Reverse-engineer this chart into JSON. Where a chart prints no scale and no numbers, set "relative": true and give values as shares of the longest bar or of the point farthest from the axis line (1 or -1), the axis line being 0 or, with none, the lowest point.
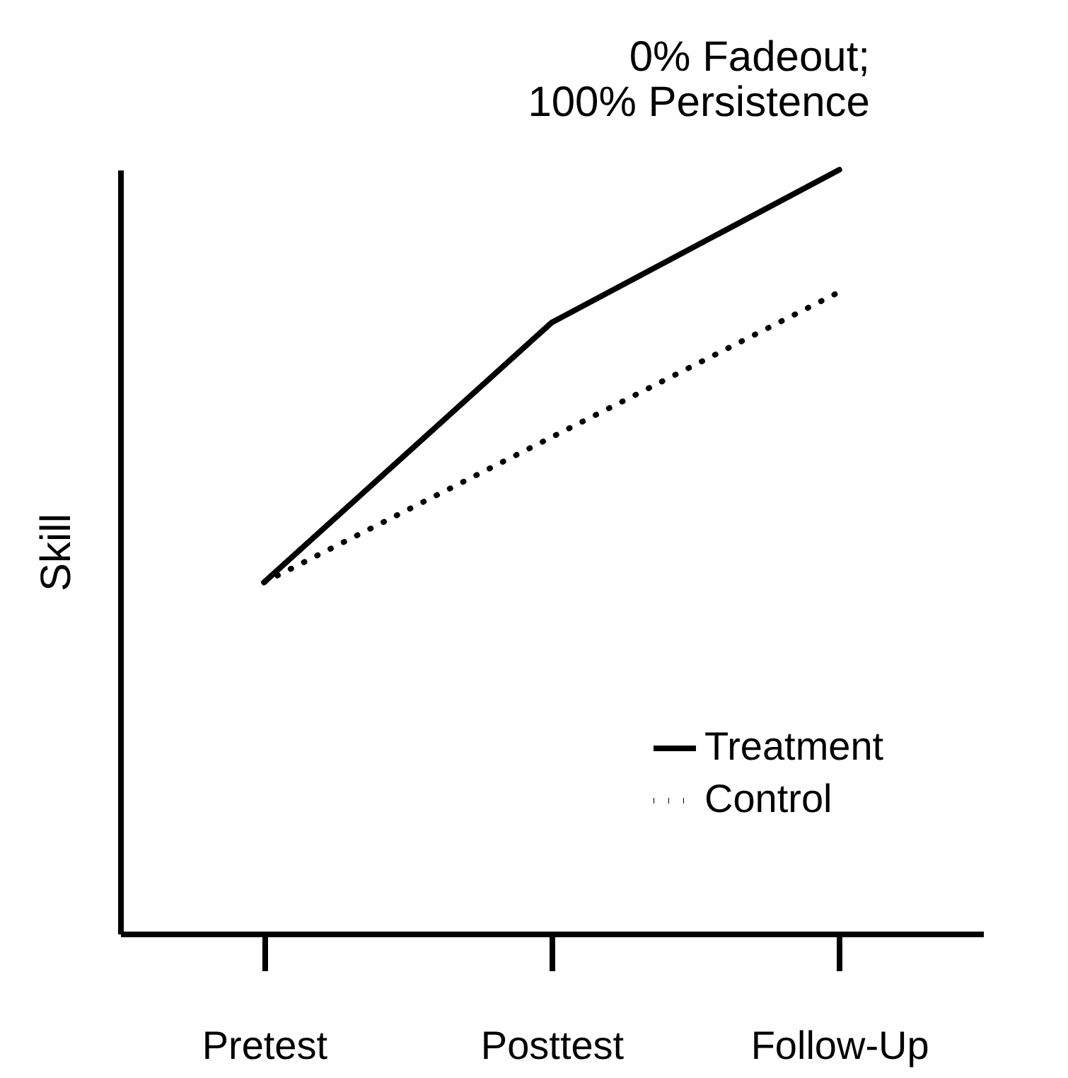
{
  "chart_data": {
    "type": "line",
    "title": "0% Fadeout; 100% Persistence",
    "ylabel": "Skill",
    "relative": true,
    "categories": [
      "Pretest",
      "Posttest",
      "Follow-Up"
    ],
    "series": [
      {
        "name": "Treatment",
        "color": "#000000",
        "line_style": "solid",
        "values": [
          0.46,
          0.8,
          1
        ]
      },
      {
        "name": "Control",
        "color": "#000000",
        "line_style": "dotted",
        "values": [
          0.46,
          0.65,
          0.84
        ]
      }
    ],
    "legend": "bottom right",
    "grid": false,
    "marker": "none"
  }
}
